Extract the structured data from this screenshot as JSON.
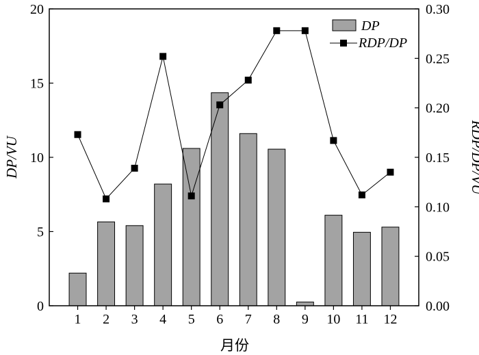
{
  "chart_data": {
    "type": "bar+line",
    "xlabel": "月份",
    "ylabel_left": "DP/VU",
    "ylabel_right": "RDP/DP/VU",
    "categories": [
      "1",
      "2",
      "3",
      "4",
      "5",
      "6",
      "7",
      "8",
      "9",
      "10",
      "11",
      "12"
    ],
    "ylim_left": [
      0,
      20
    ],
    "yticks_left": [
      "0",
      "5",
      "10",
      "15",
      "20"
    ],
    "ylim_right": [
      0,
      0.3
    ],
    "yticks_right": [
      "0.00",
      "0.05",
      "0.10",
      "0.15",
      "0.20",
      "0.25",
      "0.30"
    ],
    "series": [
      {
        "name": "DP",
        "type": "bar",
        "axis": "left",
        "values": [
          2.2,
          5.65,
          5.4,
          8.2,
          10.6,
          14.35,
          11.6,
          10.55,
          0.25,
          6.1,
          4.95,
          5.3
        ]
      },
      {
        "name": "RDP/DP",
        "type": "line",
        "axis": "right",
        "values": [
          0.173,
          0.108,
          0.139,
          0.252,
          0.111,
          0.203,
          0.228,
          0.278,
          0.278,
          0.167,
          0.112,
          0.135
        ]
      }
    ],
    "legend_position": "top-right",
    "colors": {
      "bar_fill": "#a3a3a3",
      "bar_stroke": "#000000",
      "line": "#000000",
      "marker": "#000000"
    }
  }
}
